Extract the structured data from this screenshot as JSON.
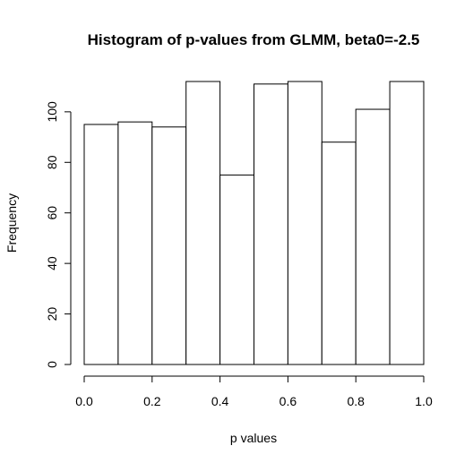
{
  "chart_data": {
    "type": "bar",
    "subtype": "histogram",
    "title": "Histogram of p-values from GLMM, beta0=-2.5",
    "xlabel": "p values",
    "ylabel": "Frequency",
    "bins": [
      {
        "start": 0.0,
        "end": 0.1,
        "value": 95
      },
      {
        "start": 0.1,
        "end": 0.2,
        "value": 96
      },
      {
        "start": 0.2,
        "end": 0.3,
        "value": 94
      },
      {
        "start": 0.3,
        "end": 0.4,
        "value": 112
      },
      {
        "start": 0.4,
        "end": 0.5,
        "value": 75
      },
      {
        "start": 0.5,
        "end": 0.6,
        "value": 111
      },
      {
        "start": 0.6,
        "end": 0.7,
        "value": 112
      },
      {
        "start": 0.7,
        "end": 0.8,
        "value": 88
      },
      {
        "start": 0.8,
        "end": 0.9,
        "value": 101
      },
      {
        "start": 0.9,
        "end": 1.0,
        "value": 112
      }
    ],
    "xlim": [
      0.0,
      1.0
    ],
    "ylim": [
      0,
      112
    ],
    "xticks": [
      0.0,
      0.2,
      0.4,
      0.6,
      0.8,
      1.0
    ],
    "xtick_labels": [
      "0.0",
      "0.2",
      "0.4",
      "0.6",
      "0.8",
      "1.0"
    ],
    "yticks": [
      0,
      20,
      40,
      60,
      80,
      100
    ],
    "ytick_labels": [
      "0",
      "20",
      "40",
      "60",
      "80",
      "100"
    ],
    "grid": false,
    "legend": "none",
    "bar_fill": "#ffffff",
    "bar_stroke": "#000000"
  }
}
